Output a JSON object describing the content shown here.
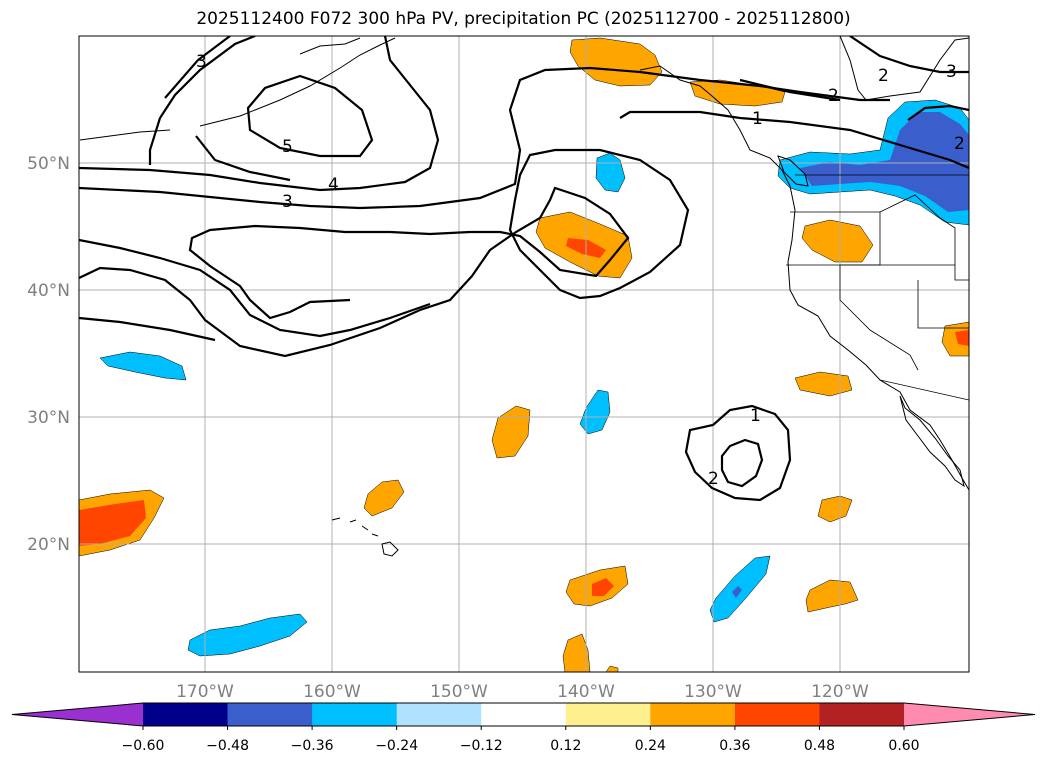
{
  "title": "2025112400 F072 300 hPa PV, precipitation PC (2025112700 - 2025112800)",
  "lat_labels": [
    "50°N",
    "40°N",
    "30°N",
    "20°N"
  ],
  "lon_labels": [
    "170°W",
    "160°W",
    "150°W",
    "140°W",
    "130°W",
    "120°W"
  ],
  "colorbar": {
    "tick_labels": [
      "−0.60",
      "−0.48",
      "−0.36",
      "−0.24",
      "−0.12",
      "0.12",
      "0.24",
      "0.36",
      "0.48",
      "0.60"
    ],
    "colors": [
      "#9b30d0",
      "#00008b",
      "#3a5fcd",
      "#00bfff",
      "#b0e2ff",
      "#ffffff",
      "#fff08f",
      "#ffa500",
      "#ff4500",
      "#b22222",
      "#ff8cb0"
    ]
  },
  "contour_labels": {
    "c3_topleft": "3",
    "c5": "5",
    "c4": "4",
    "c3": "3",
    "c1_north": "1",
    "c2_north": "2",
    "c2_ne": "2",
    "c3_ne": "3",
    "c2_east": "2",
    "c1_south": "1",
    "c2_south": "2"
  },
  "colors": {
    "orange": "#ffa500",
    "red_orange": "#ff4500",
    "light_blue": "#00bfff",
    "mid_blue": "#3a5fcd",
    "grid": "#b0b0b0",
    "axis_label": "#808080"
  }
}
